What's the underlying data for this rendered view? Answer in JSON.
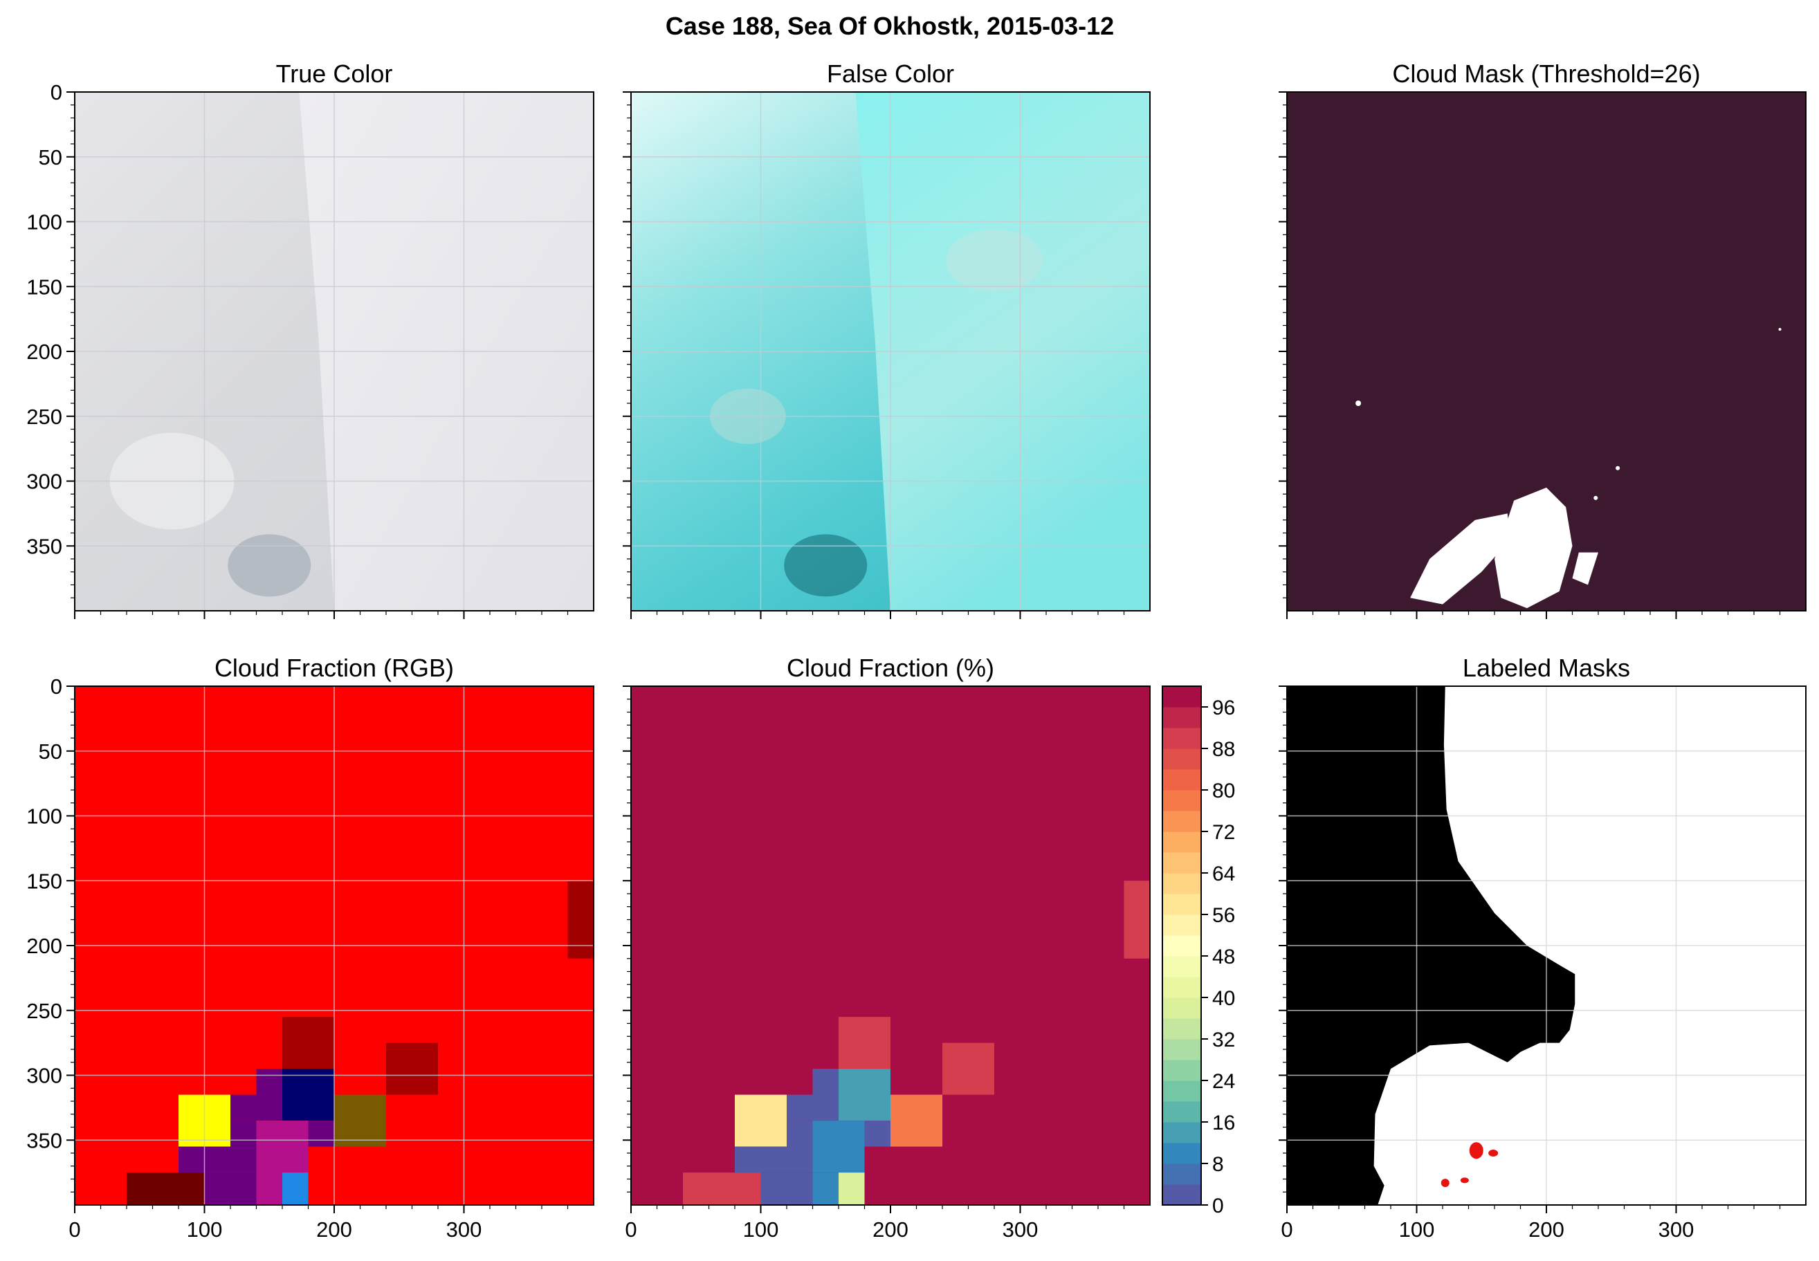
{
  "figure": {
    "suptitle": "Case 188, Sea Of Okhostk, 2015-03-12"
  },
  "colors": {
    "cloud_mask_bg": "#3d1930",
    "cloud_mask_fg": "#ffffff",
    "rgb_fraction_bg": "#ff0000",
    "labeled_bg": "#000000",
    "labeled_fg": "#ffffff",
    "labeled_marks": "#e8120e",
    "grid": "#c9c9d0"
  },
  "panels": [
    {
      "id": "true-color",
      "title": "True Color"
    },
    {
      "id": "false-color",
      "title": "False Color"
    },
    {
      "id": "cloud-mask",
      "title": "Cloud Mask (Threshold=26)"
    },
    {
      "id": "cloud-fraction-rgb",
      "title": "Cloud Fraction (RGB)"
    },
    {
      "id": "cloud-fraction-pct",
      "title": "Cloud Fraction (%)"
    },
    {
      "id": "labeled-masks",
      "title": "Labeled Masks"
    }
  ],
  "axes": {
    "x_ticks": [
      0,
      100,
      200,
      300
    ],
    "y_ticks": [
      0,
      50,
      100,
      150,
      200,
      250,
      300,
      350
    ],
    "xlim": [
      0,
      400
    ],
    "ylim": [
      400,
      0
    ]
  },
  "chart_data": [
    {
      "type": "heatmap",
      "title": "True Color",
      "xlim": [
        0,
        400
      ],
      "ylim": [
        400,
        0
      ],
      "grid": true
    },
    {
      "type": "heatmap",
      "title": "False Color",
      "xlim": [
        0,
        400
      ],
      "ylim": [
        400,
        0
      ],
      "grid": true
    },
    {
      "type": "heatmap",
      "title": "Cloud Mask (Threshold=26)",
      "xlim": [
        0,
        400
      ],
      "ylim": [
        400,
        0
      ],
      "grid": false,
      "background": "#3d1930"
    },
    {
      "type": "heatmap",
      "title": "Cloud Fraction (RGB)",
      "xlim": [
        0,
        400
      ],
      "ylim": [
        400,
        0
      ],
      "grid": true,
      "background": "#ff0000",
      "cells": [
        {
          "x0": 380,
          "x1": 400,
          "y0": 150,
          "y1": 210,
          "color": "#a00000"
        },
        {
          "x0": 160,
          "x1": 200,
          "y0": 255,
          "y1": 295,
          "color": "#a60000"
        },
        {
          "x0": 240,
          "x1": 280,
          "y0": 275,
          "y1": 315,
          "color": "#a80000"
        },
        {
          "x0": 140,
          "x1": 160,
          "y0": 295,
          "y1": 335,
          "color": "#6a0080"
        },
        {
          "x0": 160,
          "x1": 200,
          "y0": 295,
          "y1": 335,
          "color": "#00006e"
        },
        {
          "x0": 120,
          "x1": 140,
          "y0": 315,
          "y1": 335,
          "color": "#6a0080"
        },
        {
          "x0": 200,
          "x1": 240,
          "y0": 315,
          "y1": 355,
          "color": "#7a5a00"
        },
        {
          "x0": 80,
          "x1": 120,
          "y0": 315,
          "y1": 355,
          "color": "#ffff00"
        },
        {
          "x0": 120,
          "x1": 140,
          "y0": 335,
          "y1": 375,
          "color": "#6a0080"
        },
        {
          "x0": 140,
          "x1": 180,
          "y0": 335,
          "y1": 375,
          "color": "#b4108c"
        },
        {
          "x0": 180,
          "x1": 200,
          "y0": 335,
          "y1": 355,
          "color": "#6a0080"
        },
        {
          "x0": 80,
          "x1": 120,
          "y0": 355,
          "y1": 375,
          "color": "#6a0080"
        },
        {
          "x0": 100,
          "x1": 140,
          "y0": 375,
          "y1": 400,
          "color": "#6a0080"
        },
        {
          "x0": 140,
          "x1": 160,
          "y0": 375,
          "y1": 400,
          "color": "#b4108c"
        },
        {
          "x0": 160,
          "x1": 180,
          "y0": 375,
          "y1": 400,
          "color": "#1e88e5"
        },
        {
          "x0": 40,
          "x1": 100,
          "y0": 375,
          "y1": 400,
          "color": "#6e0000"
        }
      ]
    },
    {
      "type": "heatmap",
      "title": "Cloud Fraction (%)",
      "xlim": [
        0,
        400
      ],
      "ylim": [
        400,
        0
      ],
      "grid": false,
      "background_value": 100,
      "colorbar": {
        "ticks": [
          0,
          8,
          16,
          24,
          32,
          40,
          48,
          56,
          64,
          72,
          80,
          88,
          96
        ],
        "range": [
          0,
          100
        ],
        "levels": 25
      },
      "cells": [
        {
          "x0": 380,
          "x1": 400,
          "y0": 150,
          "y1": 210,
          "value": 90
        },
        {
          "x0": 160,
          "x1": 200,
          "y0": 255,
          "y1": 295,
          "value": 90
        },
        {
          "x0": 240,
          "x1": 280,
          "y0": 275,
          "y1": 315,
          "value": 90
        },
        {
          "x0": 140,
          "x1": 160,
          "y0": 295,
          "y1": 335,
          "value": 3
        },
        {
          "x0": 160,
          "x1": 200,
          "y0": 295,
          "y1": 335,
          "value": 15
        },
        {
          "x0": 120,
          "x1": 140,
          "y0": 315,
          "y1": 335,
          "value": 3
        },
        {
          "x0": 200,
          "x1": 240,
          "y0": 315,
          "y1": 355,
          "value": 79
        },
        {
          "x0": 80,
          "x1": 120,
          "y0": 315,
          "y1": 355,
          "value": 58
        },
        {
          "x0": 120,
          "x1": 140,
          "y0": 335,
          "y1": 375,
          "value": 3
        },
        {
          "x0": 140,
          "x1": 180,
          "y0": 335,
          "y1": 375,
          "value": 10
        },
        {
          "x0": 180,
          "x1": 200,
          "y0": 335,
          "y1": 355,
          "value": 3
        },
        {
          "x0": 80,
          "x1": 120,
          "y0": 355,
          "y1": 375,
          "value": 3
        },
        {
          "x0": 100,
          "x1": 140,
          "y0": 375,
          "y1": 400,
          "value": 3
        },
        {
          "x0": 140,
          "x1": 160,
          "y0": 375,
          "y1": 400,
          "value": 10
        },
        {
          "x0": 160,
          "x1": 180,
          "y0": 375,
          "y1": 400,
          "value": 37
        },
        {
          "x0": 40,
          "x1": 100,
          "y0": 375,
          "y1": 400,
          "value": 89
        }
      ]
    },
    {
      "type": "heatmap",
      "title": "Labeled Masks",
      "xlim": [
        0,
        400
      ],
      "ylim": [
        400,
        0
      ],
      "grid": true,
      "background": "#ffffff"
    }
  ]
}
